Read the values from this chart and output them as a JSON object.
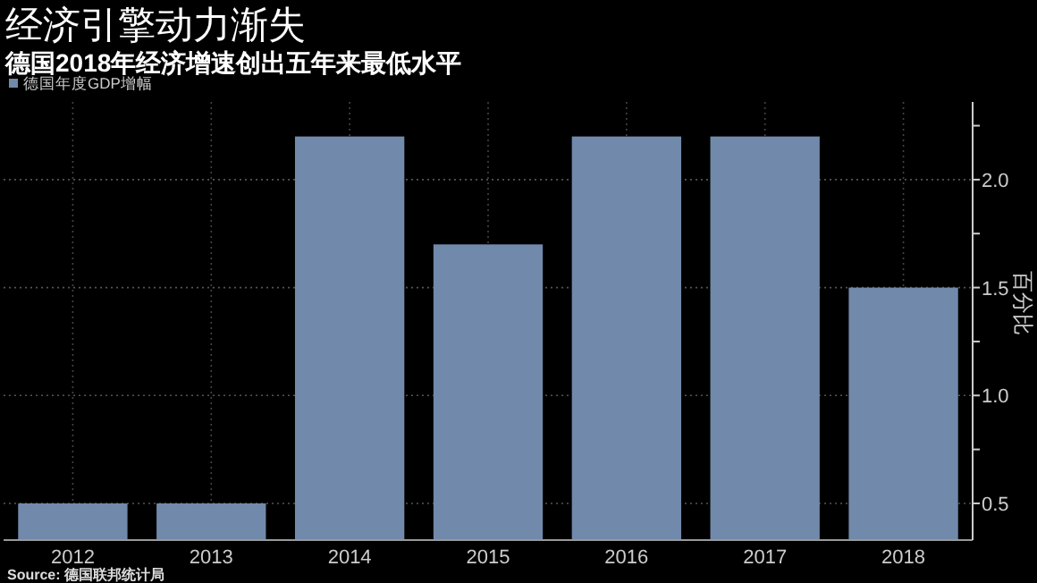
{
  "chart_data": {
    "type": "bar",
    "title": "经济引擎动力渐失",
    "subtitle": "德国2018年经济增速创出五年来最低水平",
    "categories": [
      "2012",
      "2013",
      "2014",
      "2015",
      "2016",
      "2017",
      "2018"
    ],
    "series": [
      {
        "name": "德国年度GDP增幅",
        "color": "#7189ab",
        "values": [
          0.5,
          0.5,
          2.2,
          1.7,
          2.2,
          2.2,
          1.5
        ]
      }
    ],
    "ylabel": "百分比",
    "ylim": [
      0.33,
      2.36
    ],
    "yticks": [
      0.5,
      {
        "value": 0.75,
        "label": null
      },
      {
        "value": 1,
        "label": "1.0"
      },
      {
        "value": 1.25,
        "label": null
      },
      1.5,
      {
        "value": 1.75,
        "label": null
      },
      {
        "value": 2,
        "label": "2.0"
      },
      {
        "value": 2.25,
        "label": null
      }
    ],
    "grid": true,
    "legend": "top left",
    "annotations": [
      "Source: 德国联邦统计局"
    ]
  }
}
